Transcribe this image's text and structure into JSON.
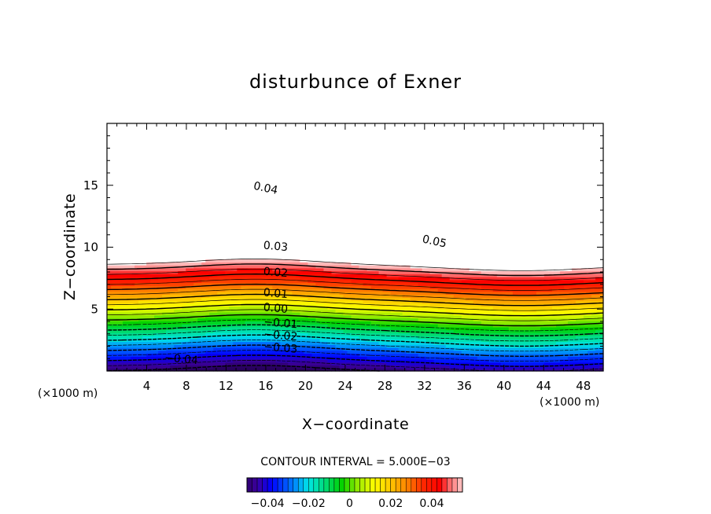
{
  "chart_data": {
    "type": "heatmap",
    "title": "disturbunce of Exner",
    "xlabel": "X−coordinate",
    "ylabel": "Z−coordinate",
    "x_unit_label": "(×1000 m)",
    "x_ticks": [
      "4",
      "8",
      "12",
      "16",
      "20",
      "24",
      "28",
      "32",
      "36",
      "40",
      "44",
      "48"
    ],
    "x_tick_values": [
      4,
      8,
      12,
      16,
      20,
      24,
      28,
      32,
      36,
      40,
      44,
      48
    ],
    "y_ticks": [
      "5",
      "10",
      "15"
    ],
    "y_tick_values": [
      5,
      10,
      15
    ],
    "xlim": [
      0,
      50
    ],
    "ylim": [
      0,
      20
    ],
    "contour_interval_text": "CONTOUR INTERVAL = 5.000E−03",
    "contour_interval": 0.005,
    "value_range": [
      -0.05,
      0.055
    ],
    "contour_labels": [
      {
        "text": "0.05",
        "value": 0.05,
        "x": 33,
        "z": 10.5
      },
      {
        "text": "0.04",
        "value": 0.04,
        "x": 16,
        "z": 14.8
      },
      {
        "text": "0.03",
        "value": 0.03,
        "x": 17,
        "z": 10.1
      },
      {
        "text": "0.02",
        "value": 0.02,
        "x": 17,
        "z": 8.0
      },
      {
        "text": "0.01",
        "value": 0.01,
        "x": 17,
        "z": 6.3
      },
      {
        "text": "0.00",
        "value": 0.0,
        "x": 17,
        "z": 5.1
      },
      {
        "text": "−0.01",
        "value": -0.01,
        "x": 17.5,
        "z": 3.9
      },
      {
        "text": "−0.02",
        "value": -0.02,
        "x": 17.5,
        "z": 2.9
      },
      {
        "text": "−0.03",
        "value": -0.03,
        "x": 17.5,
        "z": 1.9
      },
      {
        "text": "−0.04",
        "value": -0.04,
        "x": 7.5,
        "z": 1.0
      }
    ],
    "colorbar": {
      "ticks": [
        "−0.04",
        "−0.02",
        "0",
        "0.02",
        "0.04"
      ],
      "tick_values": [
        -0.04,
        -0.02,
        0,
        0.02,
        0.04
      ],
      "range": [
        -0.05,
        0.055
      ]
    },
    "colors": {
      "deep_low": "#3a0a7a",
      "low": "#0000ff",
      "mid_low": "#00ffff",
      "mid": "#00dd00",
      "mid_high": "#ffff00",
      "high": "#ff8000",
      "very_high": "#ff0000",
      "top": "#ffc8c8"
    }
  }
}
